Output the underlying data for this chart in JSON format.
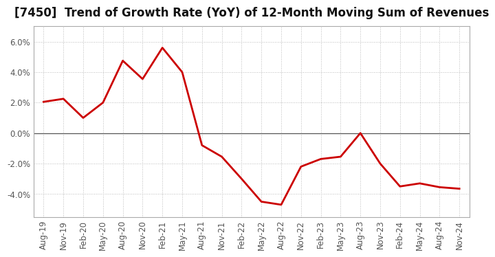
{
  "title": "[7450]  Trend of Growth Rate (YoY) of 12-Month Moving Sum of Revenues",
  "x_labels": [
    "Aug-19",
    "Nov-19",
    "Feb-20",
    "May-20",
    "Aug-20",
    "Nov-20",
    "Feb-21",
    "May-21",
    "Aug-21",
    "Nov-21",
    "Feb-22",
    "May-22",
    "Aug-22",
    "Nov-22",
    "Feb-23",
    "May-23",
    "Aug-23",
    "Nov-23",
    "Feb-24",
    "May-24",
    "Aug-24",
    "Nov-24"
  ],
  "y_values": [
    2.05,
    2.25,
    1.0,
    2.0,
    4.75,
    3.55,
    5.6,
    4.0,
    -0.8,
    -1.55,
    -3.0,
    -4.5,
    -4.7,
    -2.2,
    -1.7,
    -1.55,
    0.0,
    -2.0,
    -3.5,
    -3.3,
    -3.55,
    -3.65
  ],
  "line_color": "#cc0000",
  "line_width": 2.0,
  "ylim": [
    -5.5,
    7.0
  ],
  "yticks": [
    -4.0,
    -2.0,
    0.0,
    2.0,
    4.0,
    6.0
  ],
  "background_color": "#ffffff",
  "grid_color": "#bbbbbb",
  "zero_line_color": "#555555",
  "title_fontsize": 12,
  "tick_fontsize": 8.5
}
